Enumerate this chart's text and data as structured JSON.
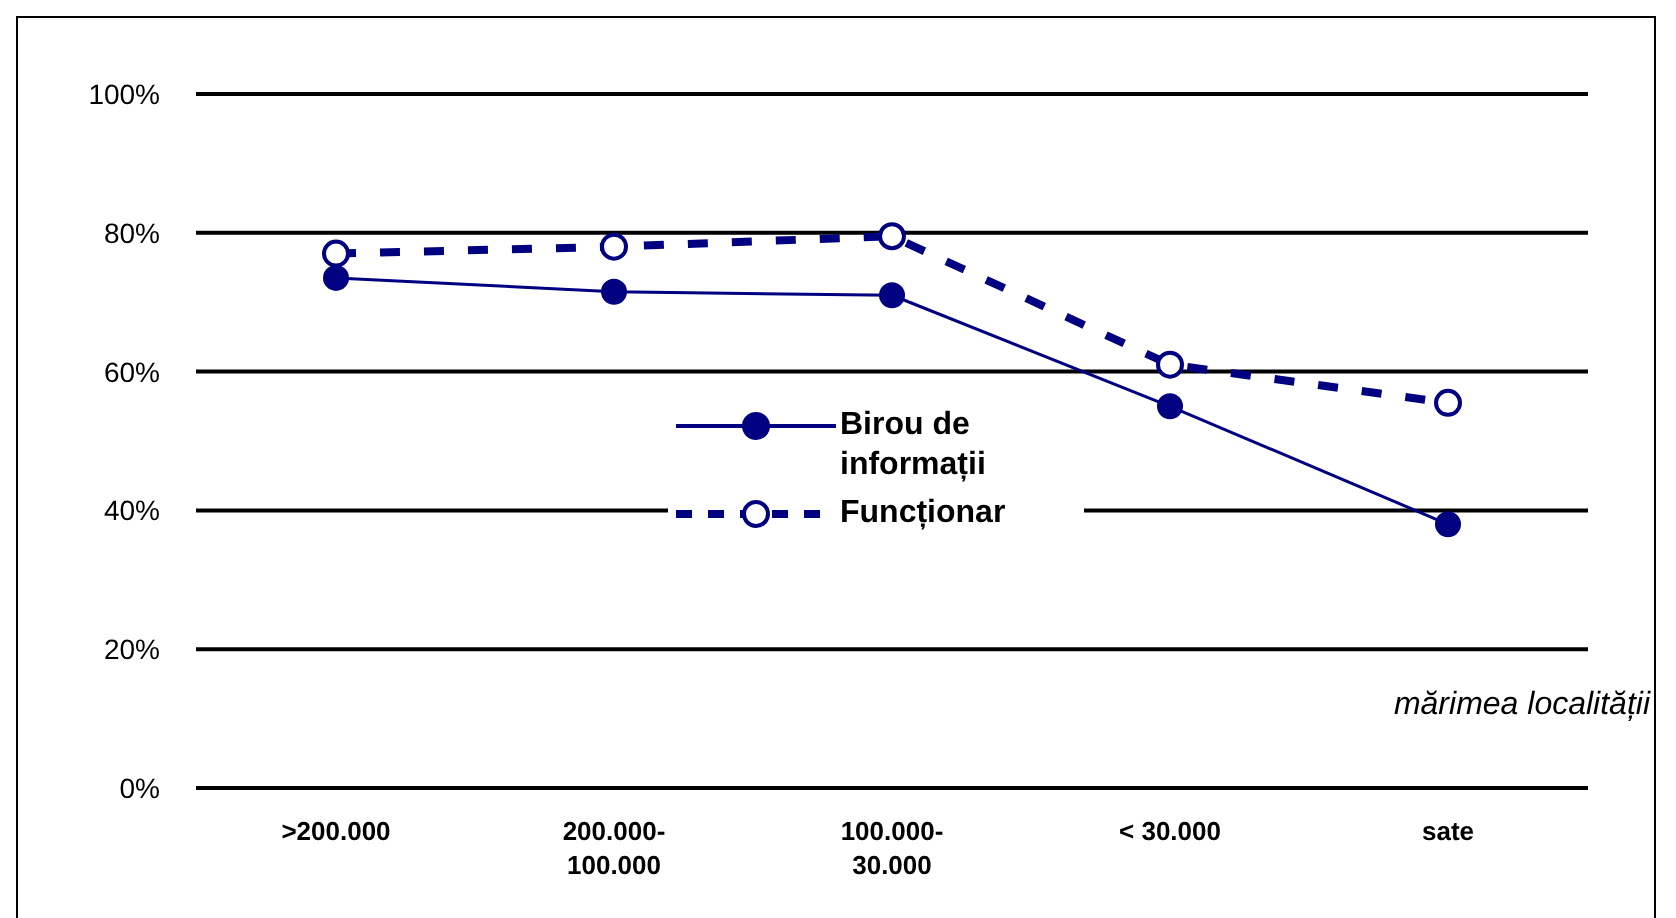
{
  "chart_data": {
    "type": "line",
    "xlabel": "mărimea localității",
    "categories": [
      ">200.000",
      "200.000-100.000",
      "100.000-30.000",
      "< 30.000",
      "sate"
    ],
    "series": [
      {
        "name": "Birou de informații",
        "color": "#000080",
        "values": [
          73.5,
          71.5,
          71,
          55,
          38
        ],
        "line_style": "solid",
        "marker": "circle"
      },
      {
        "name": "Funcționar",
        "color": "#000080",
        "values": [
          77,
          78,
          79.5,
          61,
          55.5
        ],
        "line_style": "dashed",
        "marker": "circle"
      }
    ],
    "ylim": [
      0,
      100
    ],
    "yticks": [
      {
        "value": 0,
        "label": "0%"
      },
      {
        "value": 20,
        "label": "20%"
      },
      {
        "value": 40,
        "label": "40%"
      },
      {
        "value": 60,
        "label": "60%"
      },
      {
        "value": 80,
        "label": "80%"
      },
      {
        "value": 100,
        "label": "100%"
      }
    ],
    "grid": "y",
    "legend": "center"
  }
}
